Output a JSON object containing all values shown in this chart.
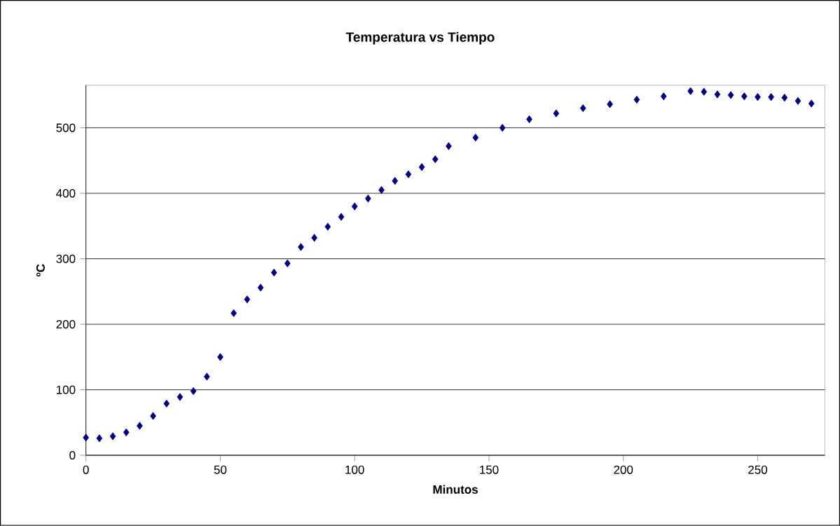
{
  "chart_data": {
    "type": "scatter",
    "title": "Temperatura vs Tiempo",
    "xlabel": "Minutos",
    "ylabel": "ºC",
    "x": [
      0,
      5,
      10,
      15,
      20,
      25,
      30,
      35,
      40,
      45,
      50,
      55,
      60,
      65,
      70,
      75,
      80,
      85,
      90,
      95,
      100,
      105,
      110,
      115,
      120,
      125,
      130,
      135,
      145,
      155,
      165,
      175,
      185,
      195,
      205,
      215,
      225,
      230,
      235,
      240,
      245,
      250,
      255,
      260,
      265,
      270
    ],
    "values": [
      27,
      26,
      29,
      35,
      45,
      60,
      79,
      89,
      98,
      120,
      150,
      217,
      238,
      256,
      279,
      293,
      318,
      332,
      349,
      364,
      380,
      392,
      405,
      419,
      429,
      440,
      452,
      472,
      485,
      500,
      513,
      522,
      530,
      536,
      543,
      548,
      556,
      555,
      551,
      550,
      548,
      547,
      547,
      546,
      541,
      537
    ],
    "color": "#000080",
    "marker": "diamond",
    "xlim": [
      0,
      275
    ],
    "ylim": [
      0,
      565
    ],
    "xticks": [
      0,
      50,
      100,
      150,
      200,
      250
    ],
    "yticks": [
      0,
      100,
      200,
      300,
      400,
      500
    ],
    "grid": "y"
  }
}
